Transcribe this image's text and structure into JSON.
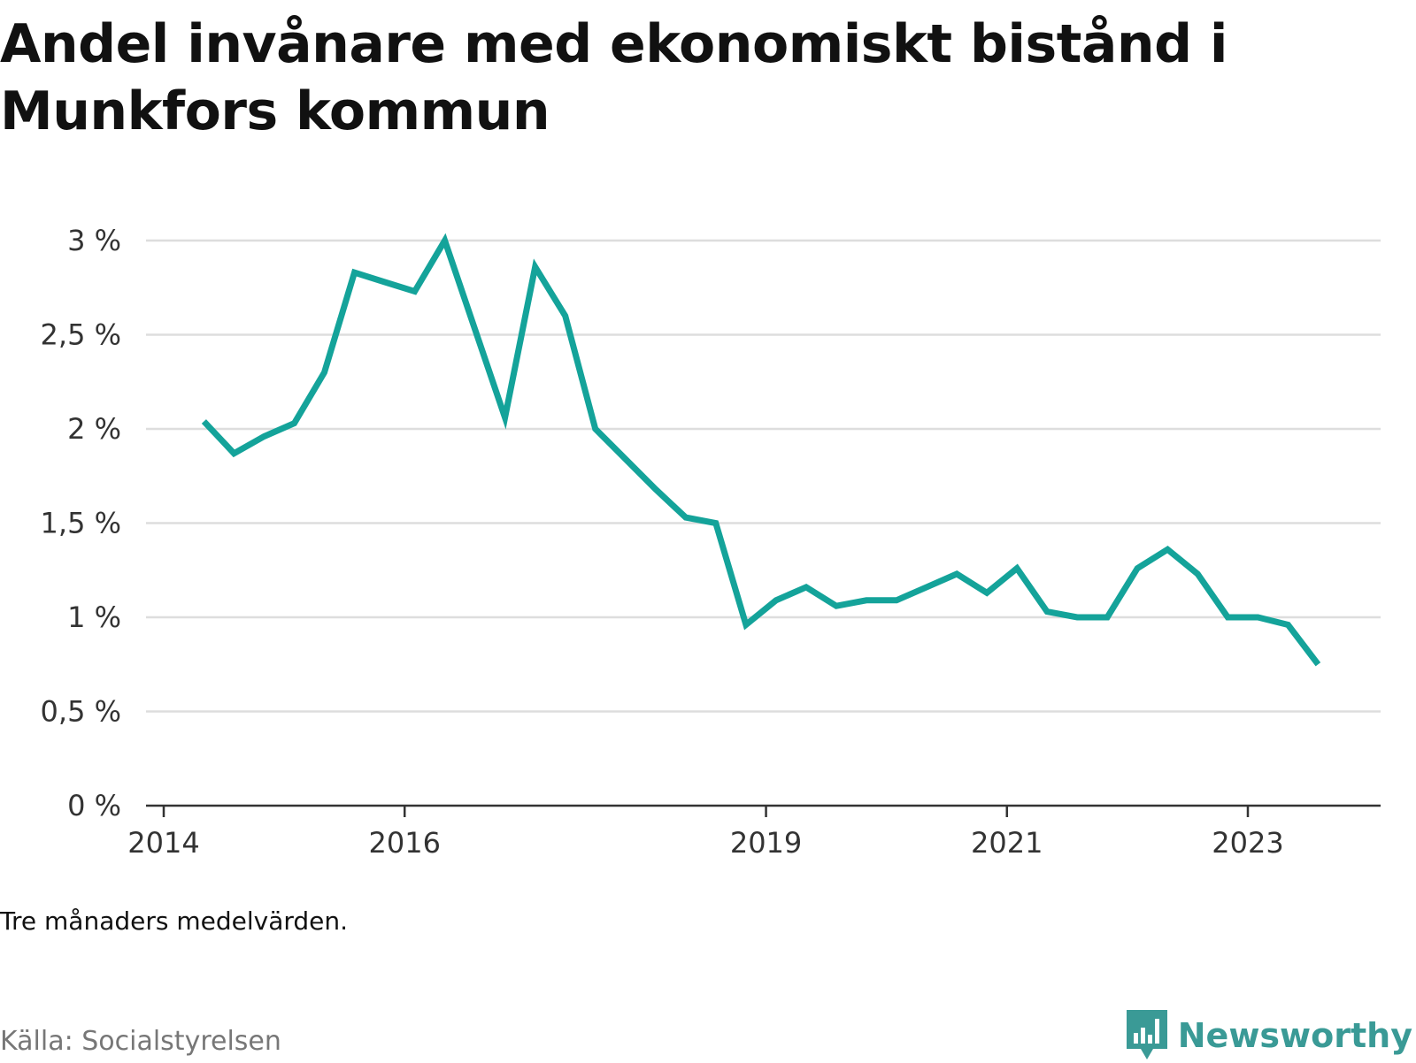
{
  "title": "Andel invånare med ekonomiskt bistånd i Munkfors kommun",
  "note": "Tre månaders medelvärden.",
  "source": "Källa: Socialstyrelsen",
  "brand": {
    "name": "Newsworthy",
    "icon": "newsworthy-logo-icon",
    "color": "#3a9a96"
  },
  "chart_data": {
    "type": "line",
    "title": "Andel invånare med ekonomiskt bistånd i Munkfors kommun",
    "xlabel": "",
    "ylabel": "",
    "ylim": [
      0,
      3
    ],
    "xlim": [
      "2014-01",
      "2024-01"
    ],
    "y_ticks": [
      {
        "value": 0,
        "label": "0 %"
      },
      {
        "value": 0.5,
        "label": "0,5 %"
      },
      {
        "value": 1,
        "label": "1 %"
      },
      {
        "value": 1.5,
        "label": "1,5 %"
      },
      {
        "value": 2,
        "label": "2 %"
      },
      {
        "value": 2.5,
        "label": "2,5 %"
      },
      {
        "value": 3,
        "label": "3 %"
      }
    ],
    "x_ticks": [
      {
        "value": "2014-01",
        "label": "2014"
      },
      {
        "value": "2016-01",
        "label": "2016"
      },
      {
        "value": "2019-01",
        "label": "2019"
      },
      {
        "value": "2021-01",
        "label": "2021"
      },
      {
        "value": "2023-01",
        "label": "2023"
      }
    ],
    "grid": true,
    "line_color": "#14a39a",
    "x": [
      "2014-05",
      "2014-08",
      "2014-11",
      "2015-02",
      "2015-05",
      "2015-08",
      "2015-11",
      "2016-02",
      "2016-05",
      "2016-08",
      "2016-11",
      "2017-02",
      "2017-05",
      "2017-08",
      "2017-11",
      "2018-02",
      "2018-05",
      "2018-08",
      "2018-11",
      "2019-02",
      "2019-05",
      "2019-08",
      "2019-11",
      "2020-02",
      "2020-05",
      "2020-08",
      "2020-11",
      "2021-02",
      "2021-05",
      "2021-08",
      "2021-11",
      "2022-02",
      "2022-05",
      "2022-08",
      "2022-11",
      "2023-02",
      "2023-05",
      "2023-08"
    ],
    "values": [
      2.04,
      1.87,
      1.96,
      2.03,
      2.3,
      2.83,
      2.78,
      2.73,
      3.0,
      2.53,
      2.06,
      2.86,
      2.6,
      2.0,
      1.84,
      1.68,
      1.53,
      1.5,
      0.96,
      1.09,
      1.16,
      1.06,
      1.09,
      1.09,
      1.16,
      1.23,
      1.13,
      1.26,
      1.03,
      1.0,
      1.0,
      1.26,
      1.36,
      1.23,
      1.0,
      1.0,
      0.96,
      0.75
    ]
  }
}
